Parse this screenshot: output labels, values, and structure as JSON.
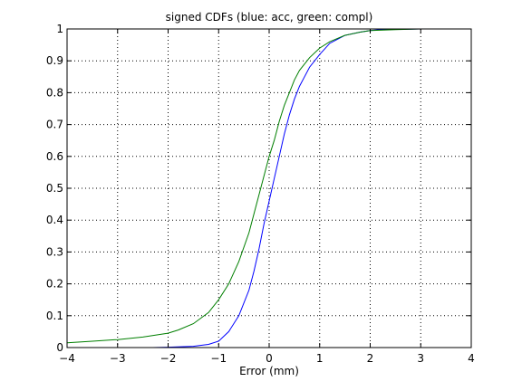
{
  "chart_data": {
    "type": "line",
    "title": "signed CDFs (blue: acc, green: compl)",
    "xlabel": "Error (mm)",
    "ylabel": "",
    "xlim": [
      -4,
      4
    ],
    "ylim": [
      0,
      1
    ],
    "xticks": [
      -4,
      -3,
      -2,
      -1,
      0,
      1,
      2,
      3,
      4
    ],
    "yticks": [
      0,
      0.1,
      0.2,
      0.3,
      0.4,
      0.5,
      0.6,
      0.7,
      0.8,
      0.9,
      1
    ],
    "grid": true,
    "series": [
      {
        "color": "#0000ff",
        "x": [
          -2.3,
          -2.0,
          -1.5,
          -1.2,
          -1.0,
          -0.8,
          -0.6,
          -0.4,
          -0.3,
          -0.2,
          -0.1,
          0.0,
          0.1,
          0.2,
          0.3,
          0.4,
          0.5,
          0.6,
          0.7,
          0.8,
          1.0,
          1.2,
          1.5,
          1.8,
          2.0,
          2.2,
          3.0,
          4.0
        ],
        "y": [
          0.0,
          0.001,
          0.004,
          0.01,
          0.02,
          0.05,
          0.1,
          0.18,
          0.24,
          0.31,
          0.39,
          0.46,
          0.53,
          0.6,
          0.67,
          0.73,
          0.78,
          0.82,
          0.85,
          0.88,
          0.92,
          0.955,
          0.98,
          0.99,
          0.995,
          0.998,
          1.0,
          1.0
        ]
      },
      {
        "color": "#007f00",
        "x": [
          -4.0,
          -3.5,
          -3.0,
          -2.5,
          -2.0,
          -1.8,
          -1.5,
          -1.2,
          -1.0,
          -0.8,
          -0.6,
          -0.4,
          -0.3,
          -0.2,
          -0.1,
          0.0,
          0.1,
          0.2,
          0.3,
          0.4,
          0.5,
          0.6,
          0.8,
          1.0,
          1.2,
          1.5,
          1.8,
          2.0,
          2.5,
          3.0,
          4.0
        ],
        "y": [
          0.015,
          0.02,
          0.025,
          0.033,
          0.045,
          0.055,
          0.075,
          0.11,
          0.15,
          0.2,
          0.27,
          0.36,
          0.42,
          0.48,
          0.54,
          0.6,
          0.65,
          0.71,
          0.76,
          0.8,
          0.84,
          0.87,
          0.91,
          0.94,
          0.96,
          0.98,
          0.99,
          0.995,
          0.998,
          1.0,
          1.0
        ]
      }
    ]
  }
}
